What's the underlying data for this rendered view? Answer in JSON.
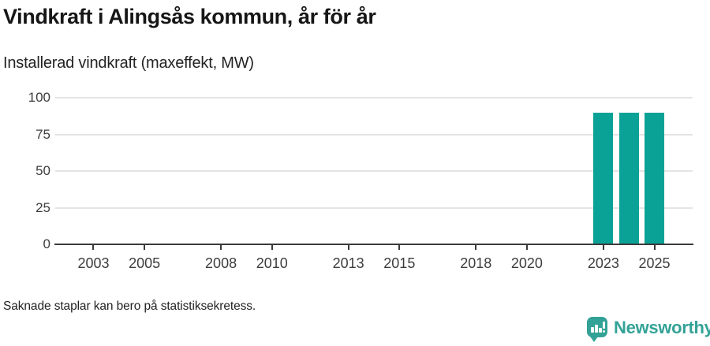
{
  "header": {
    "title": "Vindkraft i Alingsås kommun, år för år",
    "subtitle": "Installerad vindkraft (maxeffekt, MW)"
  },
  "footer": {
    "note": "Saknade staplar kan bero på statistiksekretess.",
    "brand": "Newsworthy"
  },
  "colors": {
    "bar": "#0aa296",
    "axis": "#3a3a3a",
    "grid": "#e4e4e4",
    "brand": "#33a296",
    "title_text": "#161616",
    "axis_text": "#3d3d3d"
  },
  "chart_data": {
    "type": "bar",
    "title": "Vindkraft i Alingsås kommun, år för år",
    "subtitle": "Installerad vindkraft (maxeffekt, MW)",
    "xlabel": "",
    "ylabel": "Installerad vindkraft (maxeffekt, MW)",
    "x_domain": [
      2002,
      2026
    ],
    "x_ticks": [
      "2003",
      "2005",
      "2008",
      "2010",
      "2013",
      "2015",
      "2018",
      "2020",
      "2023",
      "2025"
    ],
    "y_ticks": [
      0,
      25,
      50,
      75,
      100
    ],
    "ylim": [
      0,
      100
    ],
    "grid": true,
    "legend": false,
    "bars": [
      {
        "year": 2023,
        "value": 90
      },
      {
        "year": 2024,
        "value": 90
      },
      {
        "year": 2025,
        "value": 90
      }
    ],
    "note": "Saknade staplar kan bero på statistiksekretess."
  }
}
